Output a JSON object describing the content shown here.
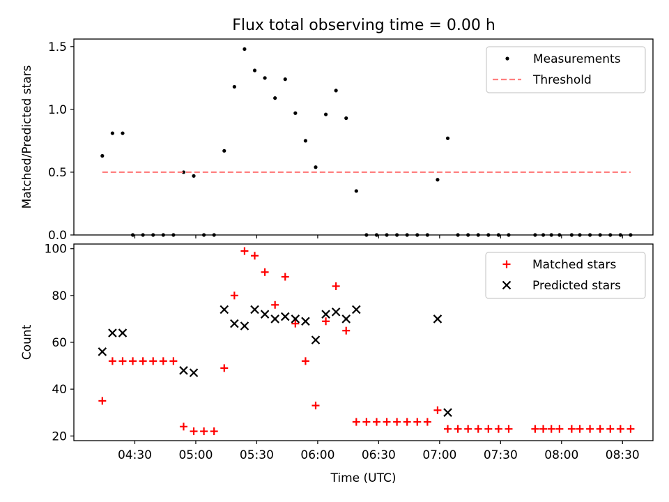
{
  "figure": {
    "title": "Flux total observing time = 0.00 h"
  },
  "chart_data": [
    {
      "type": "scatter",
      "ylabel": "Matched/Predicted stars",
      "xlabel": "",
      "ylim": [
        0,
        1.56
      ],
      "xlim": [
        "04:00",
        "08:45"
      ],
      "yticks": [
        0.0,
        0.5,
        1.0,
        1.5
      ],
      "yticklabels": [
        "0.0",
        "0.5",
        "1.0",
        "1.5"
      ],
      "legend": {
        "placement": "top-right",
        "entries": [
          "Measurements",
          "Threshold"
        ]
      },
      "series": [
        {
          "name": "Measurements",
          "marker": "dot",
          "color": "#000000",
          "x": [
            "04:14",
            "04:19",
            "04:24",
            "04:29",
            "04:34",
            "04:39",
            "04:44",
            "04:49",
            "04:54",
            "04:59",
            "05:04",
            "05:09",
            "05:14",
            "05:19",
            "05:24",
            "05:29",
            "05:34",
            "05:39",
            "05:44",
            "05:49",
            "05:54",
            "05:59",
            "06:04",
            "06:09",
            "06:14",
            "06:19",
            "06:24",
            "06:29",
            "06:34",
            "06:39",
            "06:44",
            "06:49",
            "06:54",
            "06:59",
            "07:04",
            "07:09",
            "07:14",
            "07:19",
            "07:24",
            "07:29",
            "07:34",
            "07:47",
            "07:51",
            "07:55",
            "07:59",
            "08:05",
            "08:09",
            "08:14",
            "08:19",
            "08:24",
            "08:29",
            "08:34"
          ],
          "y": [
            0.63,
            0.81,
            0.81,
            0,
            0,
            0,
            0,
            0,
            0.5,
            0.47,
            0,
            0,
            0.67,
            1.18,
            1.48,
            1.31,
            1.25,
            1.09,
            1.24,
            0.97,
            0.75,
            0.54,
            0.96,
            1.15,
            0.93,
            0.35,
            0,
            0,
            0,
            0,
            0,
            0,
            0,
            0.44,
            0.77,
            0,
            0,
            0,
            0,
            0,
            0,
            0,
            0,
            0,
            0,
            0,
            0,
            0,
            0,
            0,
            0,
            0
          ]
        },
        {
          "name": "Threshold",
          "style": "dashed",
          "color": "#ff7f7f",
          "x": [
            "04:14",
            "08:34"
          ],
          "y": [
            0.5,
            0.5
          ]
        }
      ]
    },
    {
      "type": "scatter",
      "ylabel": "Count",
      "xlabel": "Time (UTC)",
      "ylim": [
        18,
        102
      ],
      "xlim": [
        "04:00",
        "08:45"
      ],
      "yticks": [
        20,
        40,
        60,
        80,
        100
      ],
      "yticklabels": [
        "20",
        "40",
        "60",
        "80",
        "100"
      ],
      "xticklabels": [
        "04:30",
        "05:00",
        "05:30",
        "06:00",
        "06:30",
        "07:00",
        "07:30",
        "08:00",
        "08:30"
      ],
      "legend": {
        "placement": "top-right",
        "entries": [
          "Matched stars",
          "Predicted stars"
        ]
      },
      "series": [
        {
          "name": "Matched stars",
          "marker": "plus",
          "color": "#ff0000",
          "x": [
            "04:14",
            "04:19",
            "04:24",
            "04:29",
            "04:34",
            "04:39",
            "04:44",
            "04:49",
            "04:54",
            "04:59",
            "05:04",
            "05:09",
            "05:14",
            "05:19",
            "05:24",
            "05:29",
            "05:34",
            "05:39",
            "05:44",
            "05:49",
            "05:54",
            "05:59",
            "06:04",
            "06:09",
            "06:14",
            "06:19",
            "06:24",
            "06:29",
            "06:34",
            "06:39",
            "06:44",
            "06:49",
            "06:54",
            "06:59",
            "07:04",
            "07:09",
            "07:14",
            "07:19",
            "07:24",
            "07:29",
            "07:34",
            "07:47",
            "07:51",
            "07:55",
            "07:59",
            "08:05",
            "08:09",
            "08:14",
            "08:19",
            "08:24",
            "08:29",
            "08:34"
          ],
          "y": [
            35,
            52,
            52,
            52,
            52,
            52,
            52,
            52,
            24,
            22,
            22,
            22,
            49,
            80,
            99,
            97,
            90,
            76,
            88,
            68,
            52,
            33,
            69,
            84,
            65,
            26,
            26,
            26,
            26,
            26,
            26,
            26,
            26,
            31,
            23,
            23,
            23,
            23,
            23,
            23,
            23,
            23,
            23,
            23,
            23,
            23,
            23,
            23,
            23,
            23,
            23,
            23
          ]
        },
        {
          "name": "Predicted stars",
          "marker": "x",
          "color": "#000000",
          "x": [
            "04:14",
            "04:19",
            "04:24",
            "04:54",
            "04:59",
            "05:14",
            "05:19",
            "05:24",
            "05:29",
            "05:34",
            "05:39",
            "05:44",
            "05:49",
            "05:54",
            "05:59",
            "06:04",
            "06:09",
            "06:14",
            "06:19",
            "06:59",
            "07:04"
          ],
          "y": [
            56,
            64,
            64,
            48,
            47,
            74,
            68,
            67,
            74,
            72,
            70,
            71,
            70,
            69,
            61,
            72,
            73,
            70,
            74,
            70,
            30
          ]
        }
      ]
    }
  ]
}
